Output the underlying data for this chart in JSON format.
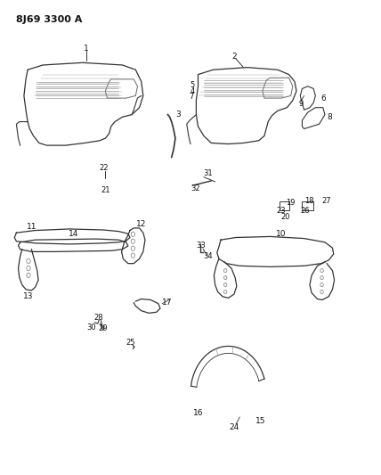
{
  "title": "8J69 3300 A",
  "bg_color": "#ffffff",
  "line_color": "#333333",
  "text_color": "#111111"
}
